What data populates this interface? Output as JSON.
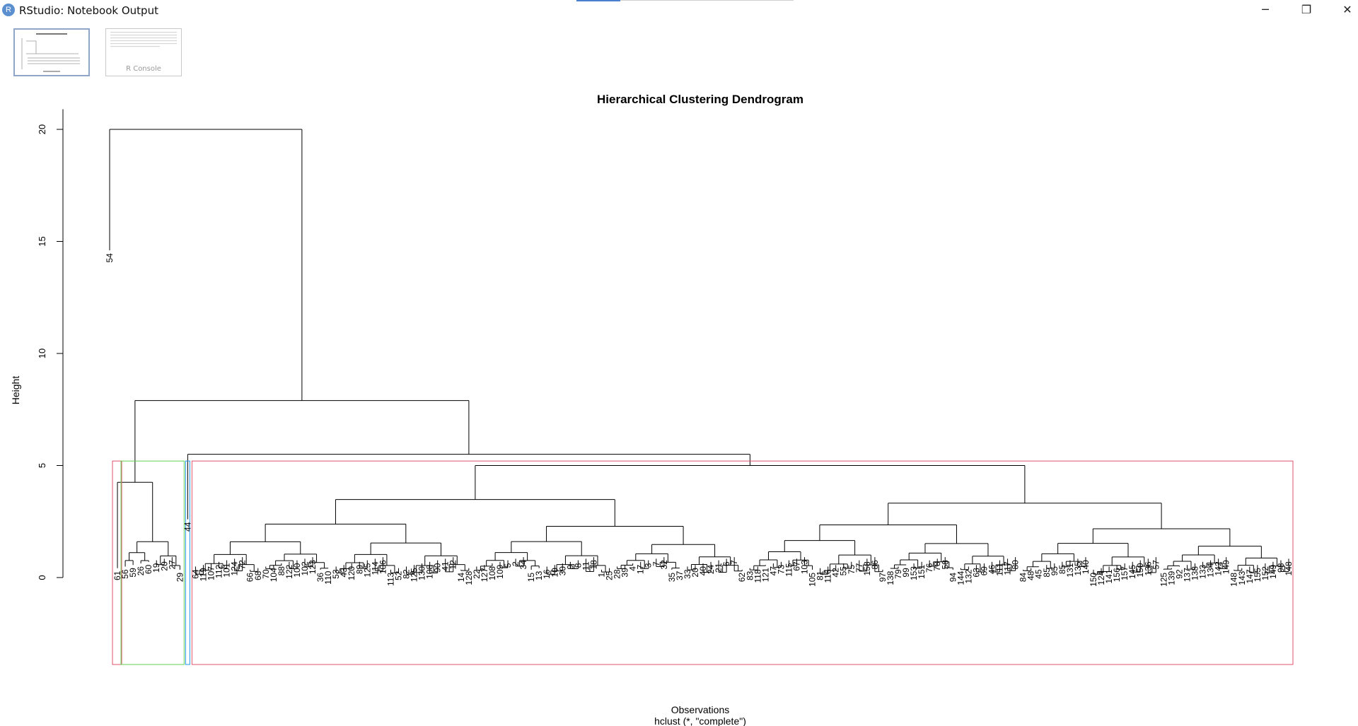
{
  "window": {
    "title": "RStudio: Notebook Output",
    "app_icon_letter": "R",
    "controls": {
      "minimize": "─",
      "restore": "❐",
      "close": "✕"
    }
  },
  "thumbnails": [
    {
      "label": "",
      "active": true
    },
    {
      "label": "R Console",
      "active": false
    }
  ],
  "chart_data": {
    "type": "dendrogram",
    "title": "Hierarchical Clustering Dendrogram",
    "xlabel": "Observations",
    "sub": "hclust (*, \"complete\")",
    "ylabel": "Height",
    "ylim": [
      0,
      20
    ],
    "yticks": [
      0,
      5,
      10,
      15,
      20
    ],
    "merge_heights": [
      20.0,
      7.9,
      5.5,
      5.0,
      4.75,
      4.25,
      4.2,
      3.5,
      3.35,
      2.7,
      2.7,
      2.5,
      1.6,
      1.3
    ],
    "cluster_boxes": [
      {
        "color": "#df536b",
        "members": [
          "61"
        ]
      },
      {
        "color": "#61d04f",
        "members": [
          "56",
          "59",
          "26",
          "60",
          "19",
          "20",
          "27",
          "29"
        ]
      },
      {
        "color": "#2297e6",
        "members": [
          "44"
        ]
      },
      {
        "color": "#df536b",
        "members": [
          "64",
          "..."
        ]
      }
    ],
    "leaf_labels": [
      "54",
      "61",
      "56",
      "59",
      "26",
      "60",
      "19",
      "20",
      "27",
      "29",
      "44",
      "64",
      "119",
      "107",
      "112",
      "101",
      "124",
      "72",
      "66",
      "68",
      "70",
      "104",
      "88",
      "122",
      "100",
      "102",
      "123",
      "36",
      "110",
      "53",
      "43",
      "120",
      "89",
      "125",
      "114",
      "106",
      "113",
      "52",
      "82",
      "125",
      "130",
      "108",
      "90",
      "41",
      "12",
      "14",
      "128",
      "22",
      "127",
      "108",
      "109",
      "5",
      "2",
      "34",
      "15",
      "13",
      "16",
      "10",
      "30",
      "9",
      "8",
      "11",
      "18",
      "1",
      "25",
      "28",
      "39",
      "4",
      "17",
      "3",
      "7",
      "32",
      "35",
      "37",
      "33",
      "20",
      "40",
      "24",
      "21",
      "6",
      "7",
      "62",
      "83",
      "118",
      "121",
      "47",
      "73",
      "115",
      "67",
      "103",
      "105",
      "81",
      "116",
      "42",
      "55",
      "75",
      "77",
      "158",
      "86",
      "97",
      "138",
      "79",
      "99",
      "153",
      "151",
      "76",
      "78",
      "58",
      "94",
      "144",
      "132",
      "63",
      "69",
      "46",
      "111",
      "117",
      "80",
      "84",
      "48",
      "45",
      "85",
      "95",
      "85",
      "131",
      "135",
      "140",
      "150",
      "124",
      "141",
      "156",
      "157",
      "145",
      "150",
      "136",
      "57",
      "125",
      "139",
      "92",
      "137",
      "138",
      "133",
      "134",
      "142",
      "149",
      "148",
      "143",
      "147",
      "155",
      "152",
      "149",
      "98",
      "148"
    ]
  }
}
